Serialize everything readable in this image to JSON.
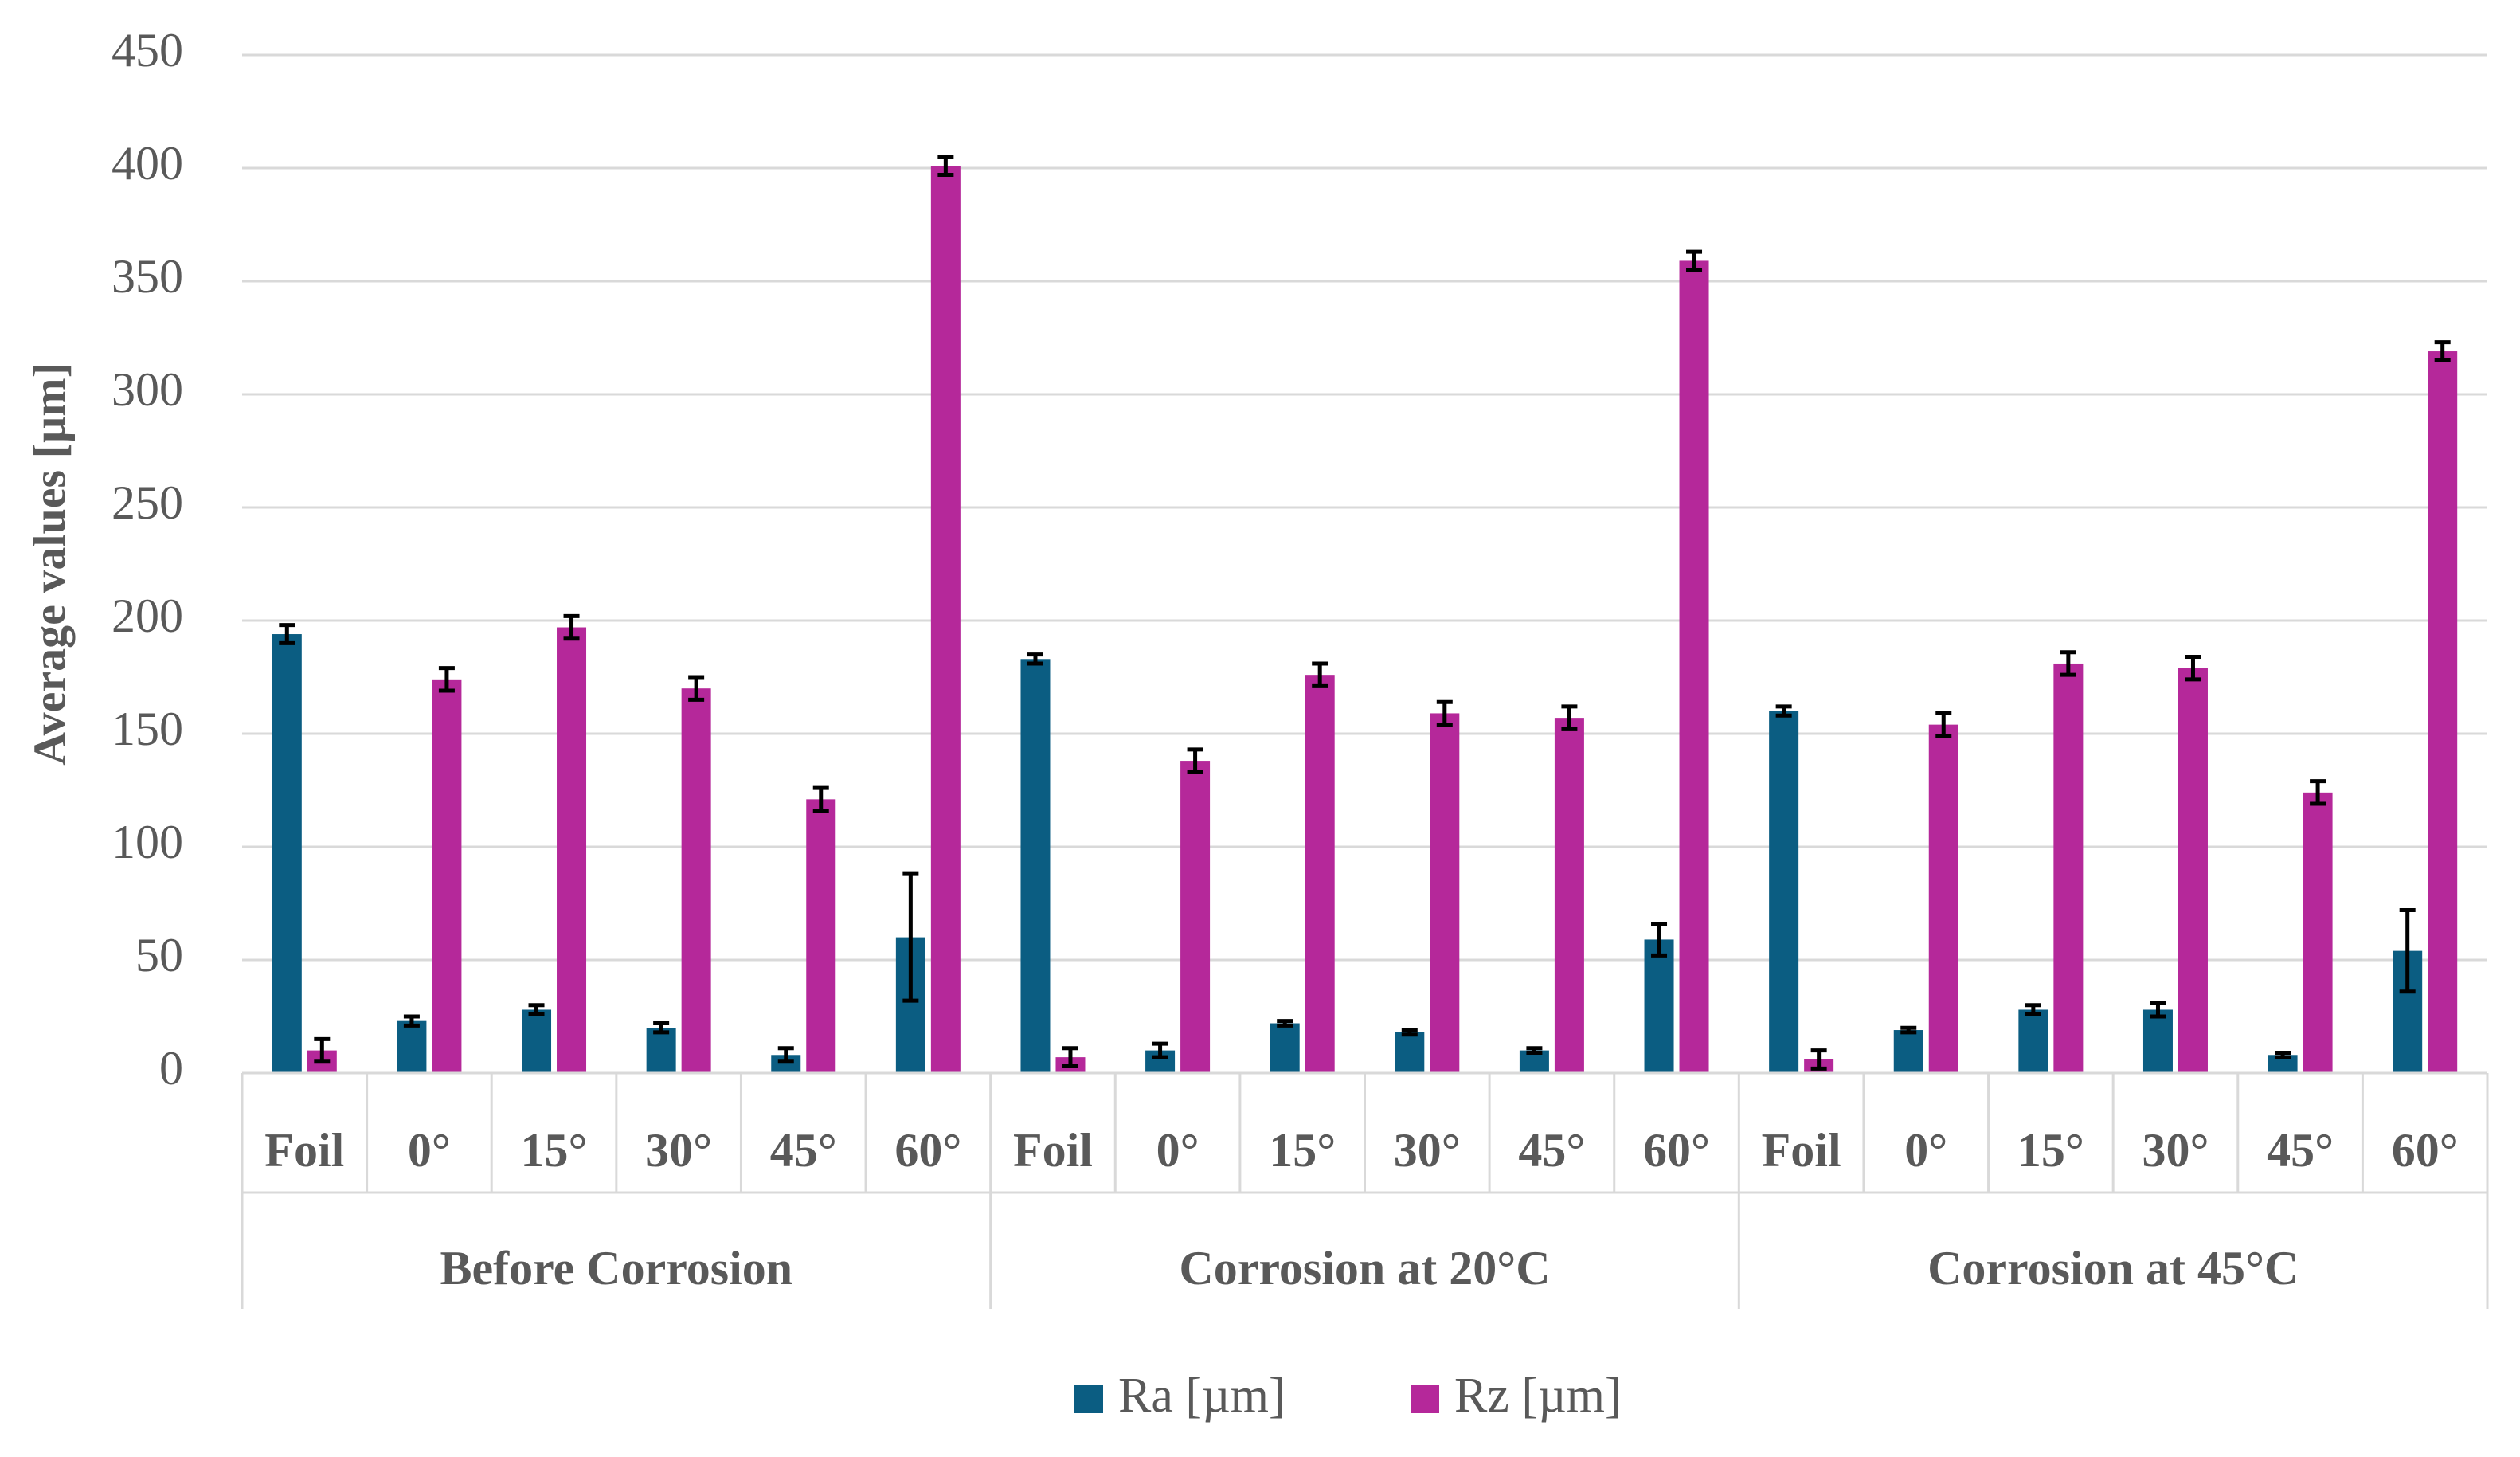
{
  "chart_data": {
    "type": "bar",
    "y_label": "Average values [µm]",
    "categories": [
      "Foil",
      "0°",
      "15°",
      "30°",
      "45°",
      "60°",
      "Foil",
      "0°",
      "15°",
      "30°",
      "45°",
      "60°",
      "Foil",
      "0°",
      "15°",
      "30°",
      "45°",
      "60°"
    ],
    "category_groups": [
      "Before Corrosion",
      "Corrosion at 20°C",
      "Corrosion at 45°C"
    ],
    "series": [
      {
        "name": "Ra [µm]",
        "color": "#0b5d82",
        "values": [
          194,
          23,
          28,
          20,
          8,
          60,
          183,
          10,
          22,
          18,
          10,
          59,
          160,
          19,
          28,
          28,
          8,
          54
        ],
        "errors": [
          4,
          2,
          2,
          2,
          3,
          28,
          2,
          3,
          1,
          1,
          1,
          7,
          2,
          1,
          2,
          3,
          1,
          18
        ]
      },
      {
        "name": "Rz [µm]",
        "color": "#b5289a",
        "values": [
          10,
          174,
          197,
          170,
          121,
          401,
          7,
          138,
          176,
          159,
          157,
          359,
          6,
          154,
          181,
          179,
          124,
          319
        ],
        "errors": [
          5,
          5,
          5,
          5,
          5,
          4,
          4,
          5,
          5,
          5,
          5,
          4,
          4,
          5,
          5,
          5,
          5,
          4
        ]
      }
    ],
    "ylim": [
      0,
      450
    ],
    "yticks": [
      0,
      50,
      100,
      150,
      200,
      250,
      300,
      350,
      400,
      450
    ],
    "grid": true,
    "legend": "bottom"
  }
}
